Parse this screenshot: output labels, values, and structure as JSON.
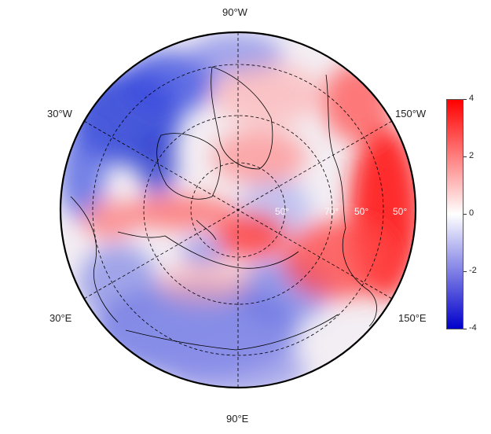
{
  "map": {
    "projection": "north-polar-stereographic",
    "longitude_labels": [
      "90°W",
      "30°W",
      "150°W",
      "30°E",
      "150°E",
      "90°E"
    ],
    "latitude_labels": [
      "50°",
      "70°",
      "50°",
      "50°"
    ]
  },
  "colorbar": {
    "ticks": [
      "4",
      "2",
      "0",
      "-2",
      "-4"
    ],
    "colors": {
      "high": "#ff0000",
      "mid": "#ffffff",
      "low": "#0000cc"
    }
  }
}
